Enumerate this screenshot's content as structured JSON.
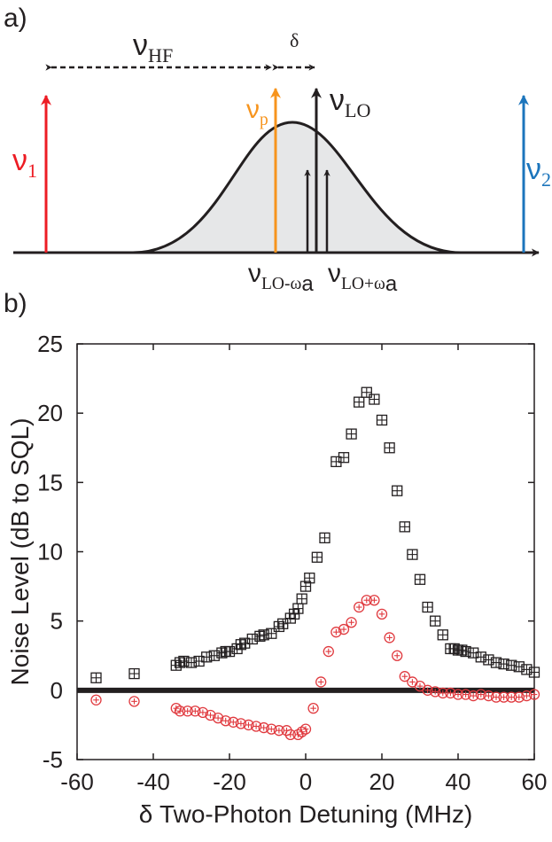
{
  "diagram": {
    "panel_label": "a)",
    "labels": [
      {
        "text": "ν",
        "sub": "HF"
      },
      {
        "text": "δ"
      },
      {
        "text": "ν",
        "sub": "1"
      },
      {
        "text": "ν",
        "sub": "p"
      },
      {
        "text": "ν",
        "sub": "LO"
      },
      {
        "text": "ν",
        "sub": "2"
      },
      {
        "text": "ν",
        "sub": "LO-ω",
        "sub2": "a"
      },
      {
        "text": "ν",
        "sub": "LO+ω",
        "sub2": "a"
      }
    ]
  },
  "chart_data": {
    "type": "scatter",
    "panel_label": "b)",
    "xlabel": "δ Two-Photon Detuning (MHz)",
    "ylabel": "Noise Level (dB to SQL)",
    "xlim": [
      -60,
      60
    ],
    "xticks": [
      -60,
      -40,
      -20,
      0,
      20,
      40,
      60
    ],
    "ylim": [
      -5,
      25
    ],
    "yticks": [
      -5,
      0,
      5,
      10,
      15,
      20,
      25
    ],
    "reference_line": 0,
    "series": [
      {
        "marker": "square",
        "color": "#231f20",
        "x": [
          -55,
          -45,
          -34,
          -33,
          -32,
          -30,
          -28,
          -26,
          -24,
          -22,
          -21,
          -20,
          -18,
          -17,
          -16,
          -14,
          -12,
          -11,
          -9,
          -7,
          -6,
          -4,
          -3,
          -2,
          -1,
          0,
          1,
          3,
          5,
          8,
          10,
          12,
          14,
          16,
          18,
          20,
          22,
          24,
          26,
          28,
          30,
          32,
          34,
          36,
          38,
          39,
          40,
          41,
          42,
          44,
          46,
          48,
          50,
          52,
          54,
          56,
          58,
          60
        ],
        "values": [
          0.9,
          1.2,
          1.8,
          2.0,
          2.1,
          2.0,
          2.1,
          2.4,
          2.5,
          2.7,
          2.8,
          2.8,
          3.0,
          3.3,
          3.4,
          3.7,
          3.9,
          4.0,
          4.1,
          4.6,
          4.8,
          5.2,
          5.5,
          5.9,
          6.6,
          7.5,
          8.1,
          9.6,
          11.0,
          16.5,
          16.8,
          18.5,
          20.8,
          21.5,
          21.0,
          19.5,
          17.5,
          14.4,
          11.8,
          9.8,
          8.0,
          6.0,
          5.0,
          4.0,
          3.0,
          3.0,
          2.9,
          2.9,
          2.8,
          2.7,
          2.4,
          2.2,
          2.0,
          1.9,
          1.8,
          1.7,
          1.5,
          1.3
        ]
      },
      {
        "marker": "circle",
        "color": "#e0393e",
        "x": [
          -55,
          -45,
          -34,
          -33,
          -31,
          -29,
          -27,
          -25,
          -23,
          -21,
          -19,
          -17,
          -15,
          -13,
          -11,
          -9,
          -7,
          -5,
          -4,
          -2,
          -1,
          0,
          2,
          4,
          6,
          8,
          10,
          12,
          14,
          16,
          18,
          20,
          22,
          24,
          26,
          28,
          30,
          32,
          34,
          36,
          38,
          40,
          42,
          44,
          46,
          48,
          50,
          52,
          54,
          56,
          58,
          60
        ],
        "values": [
          -0.7,
          -0.8,
          -1.3,
          -1.5,
          -1.5,
          -1.5,
          -1.6,
          -1.8,
          -2.0,
          -2.2,
          -2.3,
          -2.4,
          -2.5,
          -2.6,
          -2.7,
          -2.8,
          -2.9,
          -2.9,
          -3.2,
          -3.2,
          -3.0,
          -2.8,
          -1.3,
          0.6,
          2.8,
          4.2,
          4.4,
          4.9,
          6.0,
          6.5,
          6.5,
          5.5,
          3.8,
          2.5,
          1.0,
          0.6,
          0.3,
          0.0,
          -0.1,
          -0.2,
          -0.2,
          -0.3,
          -0.3,
          -0.4,
          -0.3,
          -0.4,
          -0.5,
          -0.5,
          -0.5,
          -0.5,
          -0.4,
          -0.3
        ]
      }
    ]
  }
}
